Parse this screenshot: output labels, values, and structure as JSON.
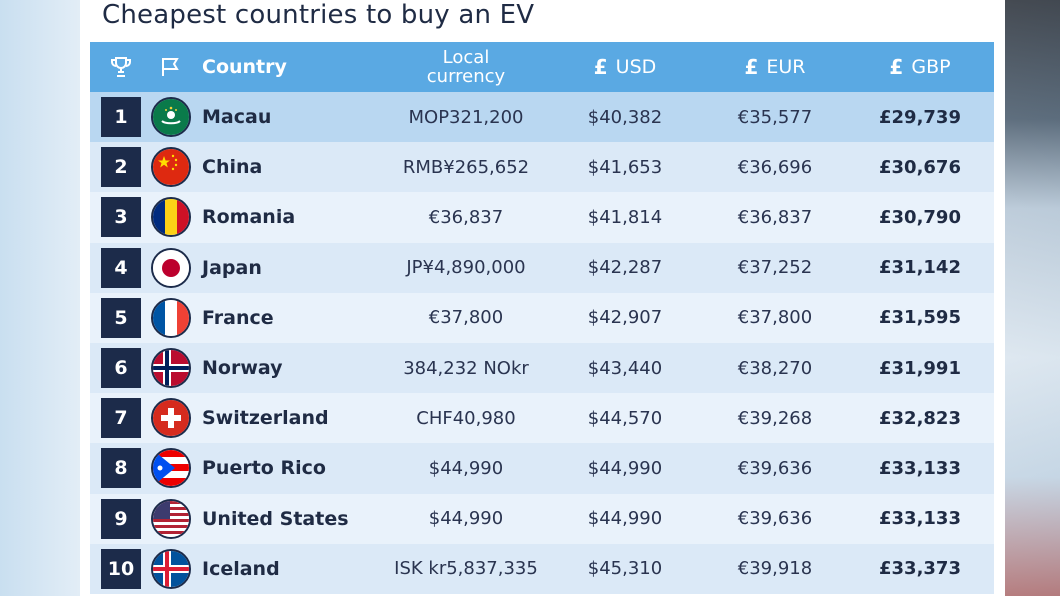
{
  "title": "Cheapest countries to buy an EV",
  "header": {
    "trophy_icon": "trophy-icon",
    "flag_icon": "flag-icon",
    "country": "Country",
    "local_line1": "Local",
    "local_line2": "currency",
    "usd_symbol": "£",
    "usd": "USD",
    "eur_symbol": "£",
    "eur": "EUR",
    "gbp_symbol": "£",
    "gbp": "GBP"
  },
  "colors": {
    "header_bg": "#5aa9e3",
    "rank_bg": "#1c2b4a",
    "row_highlight": "#b9d7f1"
  },
  "rows": [
    {
      "rank": "1",
      "country": "Macau",
      "flag": "macau-flag-icon",
      "local": "MOP321,200",
      "usd": "$40,382",
      "eur": "€35,577",
      "gbp": "£29,739"
    },
    {
      "rank": "2",
      "country": "China",
      "flag": "china-flag-icon",
      "local": "RMB¥265,652",
      "usd": "$41,653",
      "eur": "€36,696",
      "gbp": "£30,676"
    },
    {
      "rank": "3",
      "country": "Romania",
      "flag": "romania-flag-icon",
      "local": "€36,837",
      "usd": "$41,814",
      "eur": "€36,837",
      "gbp": "£30,790"
    },
    {
      "rank": "4",
      "country": "Japan",
      "flag": "japan-flag-icon",
      "local": "JP¥4,890,000",
      "usd": "$42,287",
      "eur": "€37,252",
      "gbp": "£31,142"
    },
    {
      "rank": "5",
      "country": "France",
      "flag": "france-flag-icon",
      "local": "€37,800",
      "usd": "$42,907",
      "eur": "€37,800",
      "gbp": "£31,595"
    },
    {
      "rank": "6",
      "country": "Norway",
      "flag": "norway-flag-icon",
      "local": "384,232 NOkr",
      "usd": "$43,440",
      "eur": "€38,270",
      "gbp": "£31,991"
    },
    {
      "rank": "7",
      "country": "Switzerland",
      "flag": "switzerland-flag-icon",
      "local": "CHF40,980",
      "usd": "$44,570",
      "eur": "€39,268",
      "gbp": "£32,823"
    },
    {
      "rank": "8",
      "country": "Puerto Rico",
      "flag": "puerto-rico-flag-icon",
      "local": "$44,990",
      "usd": "$44,990",
      "eur": "€39,636",
      "gbp": "£33,133"
    },
    {
      "rank": "9",
      "country": "United States",
      "flag": "usa-flag-icon",
      "local": "$44,990",
      "usd": "$44,990",
      "eur": "€39,636",
      "gbp": "£33,133"
    },
    {
      "rank": "10",
      "country": "Iceland",
      "flag": "iceland-flag-icon",
      "local": "ISK kr5,837,335",
      "usd": "$45,310",
      "eur": "€39,918",
      "gbp": "£33,373"
    }
  ]
}
